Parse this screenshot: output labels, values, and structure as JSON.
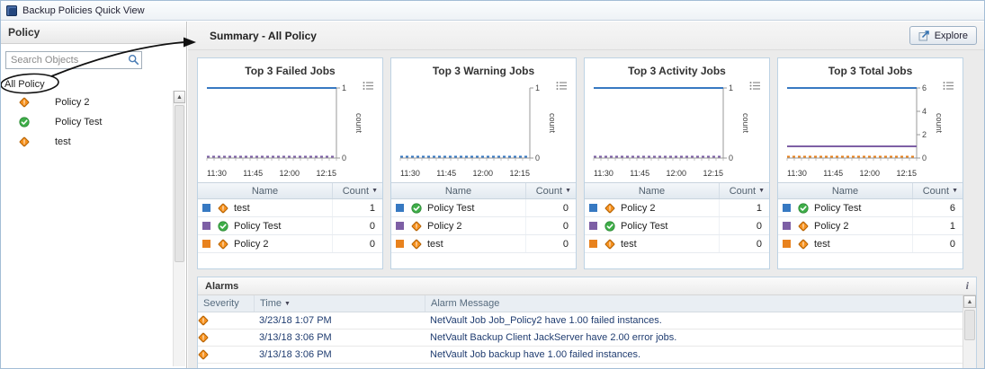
{
  "window": {
    "title": "Backup Policies Quick View"
  },
  "glyphs": {
    "sort_desc": "▼",
    "scroll_up": "▲",
    "info": "i"
  },
  "sidebar": {
    "title": "Policy",
    "search_placeholder": "Search Objects",
    "root": "All Policy",
    "items": [
      {
        "label": "Policy 2",
        "icon": "warning"
      },
      {
        "label": "Policy Test",
        "icon": "ok"
      },
      {
        "label": "test",
        "icon": "warning"
      }
    ]
  },
  "main": {
    "title": "Summary - All Policy",
    "explore": "Explore",
    "charts": [
      {
        "title": "Top 3 Failed Jobs",
        "ylabel": "count",
        "ymax": 1,
        "y_ticks": [
          1,
          0
        ],
        "x_ticks": [
          "11:30",
          "11:45",
          "12:00",
          "12:15"
        ],
        "series": [
          {
            "name": "test",
            "color": "#3779c2",
            "value": 1
          },
          {
            "name": "Policy Test",
            "color": "#7d5fa5",
            "value": 0
          },
          {
            "name": "Policy 2",
            "color": "#e8821e",
            "value": 0
          }
        ],
        "table": {
          "name_header": "Name",
          "count_header": "Count",
          "rows": [
            {
              "legend": "#3779c2",
              "icon": "warning",
              "name": "test",
              "count": "1"
            },
            {
              "legend": "#7d5fa5",
              "icon": "ok",
              "name": "Policy Test",
              "count": "0"
            },
            {
              "legend": "#e8821e",
              "icon": "warning",
              "name": "Policy 2",
              "count": "0"
            }
          ]
        }
      },
      {
        "title": "Top 3 Warning Jobs",
        "ylabel": "count",
        "ymax": 1,
        "y_ticks": [
          1,
          0
        ],
        "x_ticks": [
          "11:30",
          "11:45",
          "12:00",
          "12:15"
        ],
        "series": [
          {
            "name": "Policy Test",
            "color": "#3779c2",
            "value": 0
          },
          {
            "name": "Policy 2",
            "color": "#7d5fa5",
            "value": 0
          },
          {
            "name": "test",
            "color": "#e8821e",
            "value": 0
          }
        ],
        "table": {
          "name_header": "Name",
          "count_header": "Count",
          "rows": [
            {
              "legend": "#3779c2",
              "icon": "ok",
              "name": "Policy Test",
              "count": "0"
            },
            {
              "legend": "#7d5fa5",
              "icon": "warning",
              "name": "Policy 2",
              "count": "0"
            },
            {
              "legend": "#e8821e",
              "icon": "warning",
              "name": "test",
              "count": "0"
            }
          ]
        }
      },
      {
        "title": "Top 3 Activity Jobs",
        "ylabel": "count",
        "ymax": 1,
        "y_ticks": [
          1,
          0
        ],
        "x_ticks": [
          "11:30",
          "11:45",
          "12:00",
          "12:15"
        ],
        "series": [
          {
            "name": "Policy 2",
            "color": "#3779c2",
            "value": 1
          },
          {
            "name": "Policy Test",
            "color": "#7d5fa5",
            "value": 0
          },
          {
            "name": "test",
            "color": "#e8821e",
            "value": 0
          }
        ],
        "table": {
          "name_header": "Name",
          "count_header": "Count",
          "rows": [
            {
              "legend": "#3779c2",
              "icon": "warning",
              "name": "Policy 2",
              "count": "1"
            },
            {
              "legend": "#7d5fa5",
              "icon": "ok",
              "name": "Policy Test",
              "count": "0"
            },
            {
              "legend": "#e8821e",
              "icon": "warning",
              "name": "test",
              "count": "0"
            }
          ]
        }
      },
      {
        "title": "Top 3 Total Jobs",
        "ylabel": "count",
        "ymax": 6,
        "y_ticks": [
          6,
          4,
          2,
          0
        ],
        "x_ticks": [
          "11:30",
          "11:45",
          "12:00",
          "12:15"
        ],
        "series": [
          {
            "name": "Policy Test",
            "color": "#3779c2",
            "value": 6
          },
          {
            "name": "Policy 2",
            "color": "#7d5fa5",
            "value": 1
          },
          {
            "name": "test",
            "color": "#e8821e",
            "value": 0
          }
        ],
        "table": {
          "name_header": "Name",
          "count_header": "Count",
          "rows": [
            {
              "legend": "#3779c2",
              "icon": "ok",
              "name": "Policy Test",
              "count": "6"
            },
            {
              "legend": "#7d5fa5",
              "icon": "warning",
              "name": "Policy 2",
              "count": "1"
            },
            {
              "legend": "#e8821e",
              "icon": "warning",
              "name": "test",
              "count": "0"
            }
          ]
        }
      }
    ],
    "alarms": {
      "title": "Alarms",
      "columns": {
        "severity": "Severity",
        "time": "Time",
        "message": "Alarm Message"
      },
      "rows": [
        {
          "icon": "warning",
          "time": "3/23/18 1:07 PM",
          "message": "NetVault Job Job_Policy2 have 1.00 failed instances."
        },
        {
          "icon": "warning",
          "time": "3/13/18 3:06 PM",
          "message": "NetVault Backup Client JackServer have 2.00 error jobs."
        },
        {
          "icon": "warning",
          "time": "3/13/18 3:06 PM",
          "message": "NetVault Job backup have 1.00 failed instances."
        }
      ]
    }
  }
}
